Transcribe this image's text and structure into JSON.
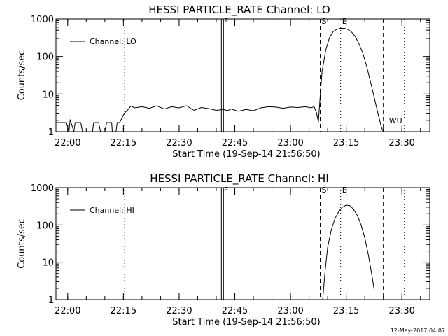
{
  "chart_data": [
    {
      "type": "line",
      "title": "HESSI PARTICLE_RATE Channel: LO",
      "xlabel": "Start Time (19-Sep-14 21:56:50)",
      "ylabel": "Counts/sec",
      "yscale": "log",
      "xlim": [
        "21:56:50",
        "23:37:30"
      ],
      "ylim": [
        1,
        1000
      ],
      "x_ticks": [
        "22:00",
        "22:15",
        "22:30",
        "22:45",
        "23:00",
        "23:15",
        "23:30"
      ],
      "y_ticks": [
        "1",
        "10",
        "100",
        "1000"
      ],
      "legend": "top-left",
      "grid": false,
      "series": [
        {
          "name": "Channel: LO",
          "x": [
            "21:56:50",
            "21:59:40",
            "22:00:20",
            "22:00:40",
            "22:01:40",
            "22:02:00",
            "22:03:30",
            "22:04:00",
            "22:06:40",
            "22:07:00",
            "22:08:20",
            "22:08:50",
            "22:10:00",
            "22:10:30",
            "22:11:50",
            "22:12:00",
            "22:13:00",
            "22:13:20",
            "22:14:00",
            "22:15:00",
            "22:15:30",
            "22:16:00",
            "22:17:00",
            "22:18:00",
            "22:20:00",
            "22:22:00",
            "22:24:00",
            "22:26:00",
            "22:28:00",
            "22:30:00",
            "22:32:00",
            "22:34:00",
            "22:36:00",
            "22:38:00",
            "22:40:00",
            "22:42:00",
            "22:43:00",
            "22:44:00",
            "22:46:00",
            "22:48:00",
            "22:50:00",
            "22:52:00",
            "22:54:00",
            "22:56:00",
            "22:58:00",
            "23:00:00",
            "23:02:00",
            "23:04:00",
            "23:05:30",
            "23:06:20",
            "23:07:00",
            "23:07:30",
            "23:08:00",
            "23:08:30",
            "23:09:30",
            "23:10:30",
            "23:11:30",
            "23:12:30",
            "23:13:30",
            "23:14:30",
            "23:15:30",
            "23:16:30",
            "23:17:30",
            "23:18:30",
            "23:19:30",
            "23:20:30",
            "23:21:30",
            "23:22:30",
            "23:23:30",
            "23:24:30",
            "23:25:00"
          ],
          "y": [
            1.75,
            1.75,
            1.0,
            2.1,
            1.0,
            1.75,
            1.75,
            1.0,
            1.0,
            1.75,
            1.75,
            1.0,
            1.0,
            1.75,
            1.75,
            1.0,
            1.0,
            1.75,
            1.75,
            2.8,
            3.3,
            3.6,
            4.8,
            4.3,
            4.6,
            4.2,
            4.9,
            4.0,
            4.6,
            4.3,
            4.9,
            3.7,
            4.4,
            4.1,
            3.7,
            3.9,
            3.6,
            4.0,
            3.5,
            3.9,
            3.6,
            4.3,
            4.6,
            4.5,
            4.2,
            4.5,
            4.4,
            4.6,
            4.3,
            4.6,
            3.2,
            1.8,
            9.0,
            40,
            150,
            320,
            460,
            530,
            560,
            560,
            520,
            440,
            330,
            210,
            120,
            55,
            22,
            8.5,
            3.2,
            1.3,
            1.0
          ]
        }
      ],
      "markers": [
        {
          "label": "F",
          "x": "22:41:40",
          "style": "solid"
        },
        {
          "label": "S",
          "x": "23:08:00",
          "style": "dashed"
        },
        {
          "label": "E",
          "x": "23:13:30",
          "style": "dotted"
        },
        {
          "label": "WU",
          "x": "23:25:00",
          "style": "dashed"
        }
      ],
      "other_lines": [
        {
          "x": "22:15:20",
          "style": "dotted"
        },
        {
          "x": "23:30:40",
          "style": "dotted"
        }
      ]
    },
    {
      "type": "line",
      "title": "HESSI PARTICLE_RATE Channel: HI",
      "xlabel": "Start Time (19-Sep-14 21:56:50)",
      "ylabel": "Counts/sec",
      "yscale": "log",
      "xlim": [
        "21:56:50",
        "23:37:30"
      ],
      "ylim": [
        1,
        1000
      ],
      "x_ticks": [
        "22:00",
        "22:15",
        "22:30",
        "22:45",
        "23:00",
        "23:15",
        "23:30"
      ],
      "y_ticks": [
        "1",
        "10",
        "100",
        "1000"
      ],
      "legend": "top-left",
      "grid": false,
      "series": [
        {
          "name": "Channel: HI",
          "x": [
            "23:08:40",
            "23:09:20",
            "23:10:00",
            "23:11:00",
            "23:12:00",
            "23:13:00",
            "23:14:00",
            "23:15:00",
            "23:16:00",
            "23:17:00",
            "23:18:00",
            "23:19:00",
            "23:20:00",
            "23:21:00",
            "23:22:00",
            "23:22:30"
          ],
          "y": [
            1.0,
            6.0,
            25,
            75,
            150,
            230,
            300,
            340,
            330,
            260,
            180,
            100,
            45,
            15,
            4,
            1.9
          ]
        }
      ],
      "markers": [
        {
          "label": "F",
          "x": "22:41:40",
          "style": "solid"
        },
        {
          "label": "S",
          "x": "23:08:00",
          "style": "dashed"
        },
        {
          "label": "E",
          "x": "23:13:30",
          "style": "dotted"
        },
        {
          "label": "",
          "x": "23:25:00",
          "style": "dashed"
        }
      ],
      "other_lines": [
        {
          "x": "22:15:20",
          "style": "dotted"
        },
        {
          "x": "23:30:40",
          "style": "dotted"
        }
      ]
    }
  ],
  "footer": {
    "timestamp": "12-May-2017 04:07"
  }
}
